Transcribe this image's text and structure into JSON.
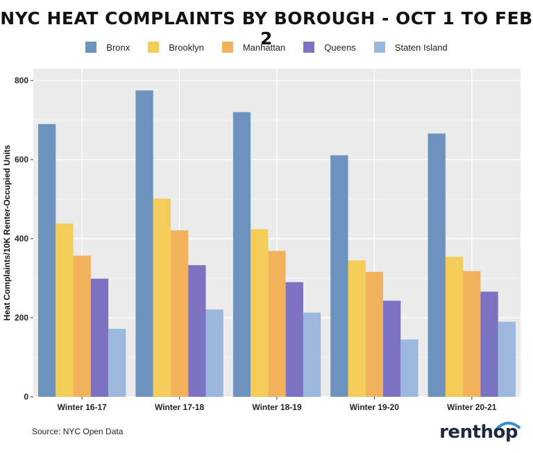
{
  "chart_data": {
    "type": "bar",
    "title": "NYC HEAT COMPLAINTS BY BOROUGH - OCT 1 TO FEB 2",
    "ylabel": "Heat Complaints/10K Renter-Occupied Units",
    "xlabel": "",
    "ylim": [
      0,
      830
    ],
    "yticks": [
      0,
      200,
      400,
      600,
      800
    ],
    "grid": true,
    "legend_position": "top",
    "categories": [
      "Winter 16-17",
      "Winter 17-18",
      "Winter 18-19",
      "Winter 19-20",
      "Winter 20-21"
    ],
    "series": [
      {
        "name": "Bronx",
        "color": "#6c93bd",
        "values": [
          690,
          775,
          720,
          611,
          666
        ]
      },
      {
        "name": "Brooklyn",
        "color": "#f4cd58",
        "values": [
          438,
          501,
          424,
          345,
          354
        ]
      },
      {
        "name": "Manhattan",
        "color": "#f2b25c",
        "values": [
          357,
          421,
          369,
          316,
          318
        ]
      },
      {
        "name": "Queens",
        "color": "#7c72c2",
        "values": [
          299,
          333,
          290,
          243,
          266
        ]
      },
      {
        "name": "Staten Island",
        "color": "#9cb9dd",
        "values": [
          172,
          221,
          213,
          145,
          190
        ]
      }
    ]
  },
  "footer": {
    "source": "Source: NYC Open Data",
    "brand": "renthop"
  },
  "colors": {
    "panel_background": "#ebebeb",
    "grid": "#ffffff",
    "brand_accent": "#3a8fd4"
  }
}
